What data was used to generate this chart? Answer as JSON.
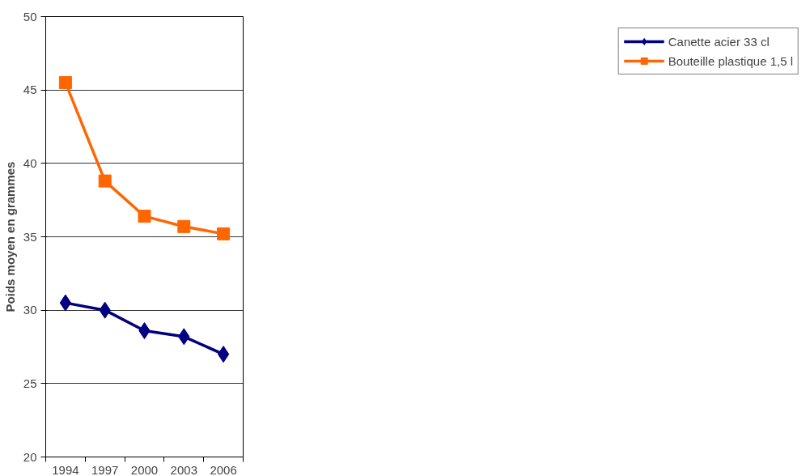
{
  "chart_data": {
    "type": "line",
    "ylabel": "Poids moyen en grammes",
    "categories": [
      "1994",
      "1997",
      "2000",
      "2003",
      "2006"
    ],
    "series": [
      {
        "name": "Canette acier 33 cl",
        "color": "#000080",
        "marker": "diamond",
        "values": [
          30.5,
          30,
          28.6,
          28.2,
          27
        ]
      },
      {
        "name": "Bouteille plastique 1,5 l",
        "color": "#ff6600",
        "marker": "square",
        "values": [
          45.5,
          38.8,
          36.4,
          35.7,
          35.2
        ]
      }
    ],
    "ylim": [
      20,
      50
    ],
    "yticks": [
      20,
      25,
      30,
      35,
      40,
      45,
      50
    ],
    "grid": "y",
    "legend": "right",
    "line_style": "solid"
  }
}
